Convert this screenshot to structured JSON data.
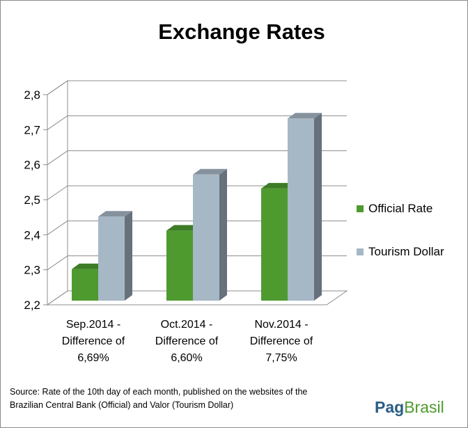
{
  "chart_data": {
    "type": "bar",
    "title": "Exchange Rates",
    "categories": [
      [
        "Sep.2014 -",
        "Difference of",
        "6,69%"
      ],
      [
        "Oct.2014 -",
        "Difference of",
        "6,60%"
      ],
      [
        "Nov.2014 -",
        "Difference of",
        "7,75%"
      ]
    ],
    "series": [
      {
        "name": "Official Rate",
        "values": [
          2.29,
          2.4,
          2.52
        ],
        "color": "#4e9a2f"
      },
      {
        "name": "Tourism Dollar",
        "values": [
          2.44,
          2.56,
          2.72
        ],
        "color": "#a6b7c6"
      }
    ],
    "ylim": [
      2.2,
      2.8
    ],
    "yticks": [
      "2,2",
      "2,3",
      "2,4",
      "2,5",
      "2,6",
      "2,7",
      "2,8"
    ],
    "grid": true,
    "legend": "right",
    "style": "3d-column"
  },
  "source": {
    "line1": "Source:  Rate of the 10th day of each month, published on the websites of the",
    "line2": "Brazilian Central Bank (Official) and Valor (Tourism Dollar)"
  },
  "logo": {
    "part1": "Pag",
    "part2": "Brasil"
  }
}
